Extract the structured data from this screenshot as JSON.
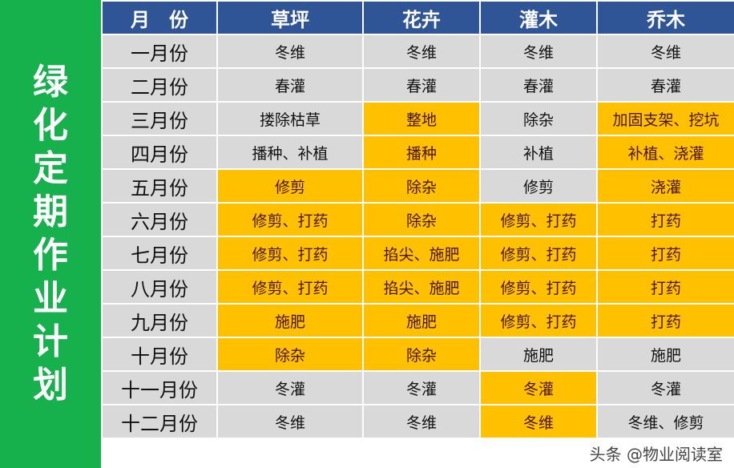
{
  "title": "绿化定期作业计划",
  "headers": [
    "月　份",
    "草坪",
    "花卉",
    "灌木",
    "乔木"
  ],
  "rows": [
    {
      "month": "一月份",
      "cells": [
        "冬维",
        "冬维",
        "冬维",
        "冬维"
      ],
      "hl": [
        0,
        0,
        0,
        0
      ]
    },
    {
      "month": "二月份",
      "cells": [
        "春灌",
        "春灌",
        "春灌",
        "春灌"
      ],
      "hl": [
        0,
        0,
        0,
        0
      ]
    },
    {
      "month": "三月份",
      "cells": [
        "搂除枯草",
        "整地",
        "除杂",
        "加固支架、挖坑"
      ],
      "hl": [
        0,
        1,
        0,
        1
      ]
    },
    {
      "month": "四月份",
      "cells": [
        "播种、补植",
        "播种",
        "补植",
        "补植、浇灌"
      ],
      "hl": [
        0,
        1,
        0,
        1
      ]
    },
    {
      "month": "五月份",
      "cells": [
        "修剪",
        "除杂",
        "修剪",
        "浇灌"
      ],
      "hl": [
        1,
        1,
        0,
        1
      ]
    },
    {
      "month": "六月份",
      "cells": [
        "修剪、打药",
        "除杂",
        "修剪、打药",
        "打药"
      ],
      "hl": [
        1,
        1,
        1,
        1
      ]
    },
    {
      "month": "七月份",
      "cells": [
        "修剪、打药",
        "掐尖、施肥",
        "修剪、打药",
        "打药"
      ],
      "hl": [
        1,
        1,
        1,
        1
      ]
    },
    {
      "month": "八月份",
      "cells": [
        "修剪、打药",
        "掐尖、施肥",
        "修剪、打药",
        "打药"
      ],
      "hl": [
        1,
        1,
        1,
        1
      ]
    },
    {
      "month": "九月份",
      "cells": [
        "施肥",
        "施肥",
        "修剪、打药",
        "打药"
      ],
      "hl": [
        1,
        1,
        1,
        1
      ]
    },
    {
      "month": "十月份",
      "cells": [
        "除杂",
        "除杂",
        "施肥",
        "施肥"
      ],
      "hl": [
        1,
        1,
        0,
        0
      ]
    },
    {
      "month": "十一月份",
      "cells": [
        "冬灌",
        "冬灌",
        "冬灌",
        "冬灌"
      ],
      "hl": [
        0,
        0,
        1,
        0
      ]
    },
    {
      "month": "十二月份",
      "cells": [
        "冬维",
        "冬维",
        "冬维",
        "冬维、修剪"
      ],
      "hl": [
        0,
        0,
        1,
        0
      ]
    }
  ],
  "colors": {
    "highlight": "#ffc000",
    "cell": "#d9d9d9",
    "header": "#2f5597",
    "side": "#16b04c"
  },
  "watermark": "头条 @物业阅读室"
}
